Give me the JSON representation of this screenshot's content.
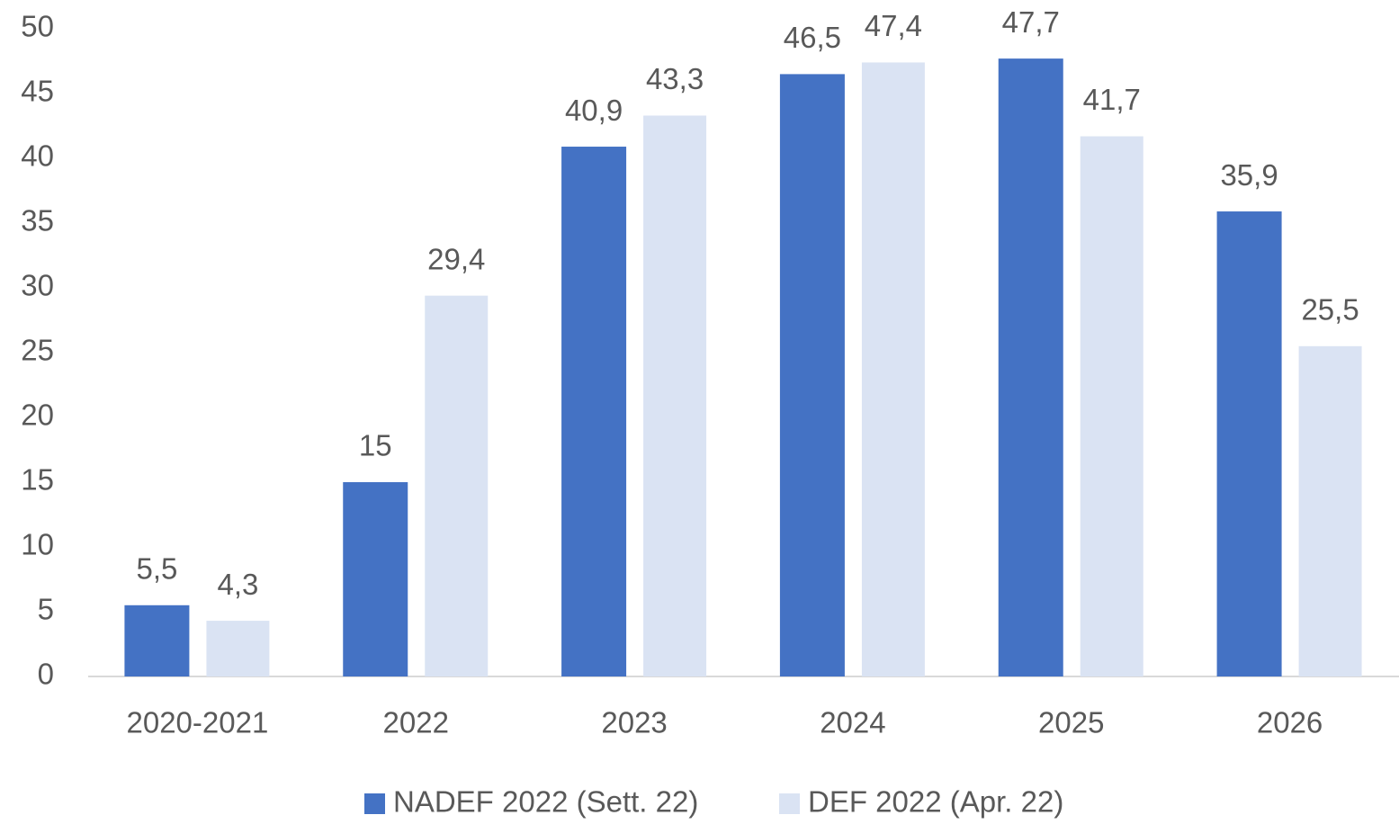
{
  "chart_data": {
    "type": "bar",
    "categories": [
      "2020-2021",
      "2022",
      "2023",
      "2024",
      "2025",
      "2026"
    ],
    "series": [
      {
        "name": "NADEF 2022 (Sett. 22)",
        "color": "#4472c4",
        "values": [
          5.5,
          15,
          40.9,
          46.5,
          47.7,
          35.9
        ],
        "value_labels": [
          "5,5",
          "15",
          "40,9",
          "46,5",
          "47,7",
          "35,9"
        ]
      },
      {
        "name": "DEF 2022 (Apr. 22)",
        "color": "#dae3f3",
        "values": [
          4.3,
          29.4,
          43.3,
          47.4,
          41.7,
          25.5
        ],
        "value_labels": [
          "4,3",
          "29,4",
          "43,3",
          "47,4",
          "41,7",
          "25,5"
        ]
      }
    ],
    "ylim": [
      0,
      50
    ],
    "yticks": [
      0,
      5,
      10,
      15,
      20,
      25,
      30,
      35,
      40,
      45,
      50
    ],
    "grid": false,
    "legend": "bottom"
  }
}
